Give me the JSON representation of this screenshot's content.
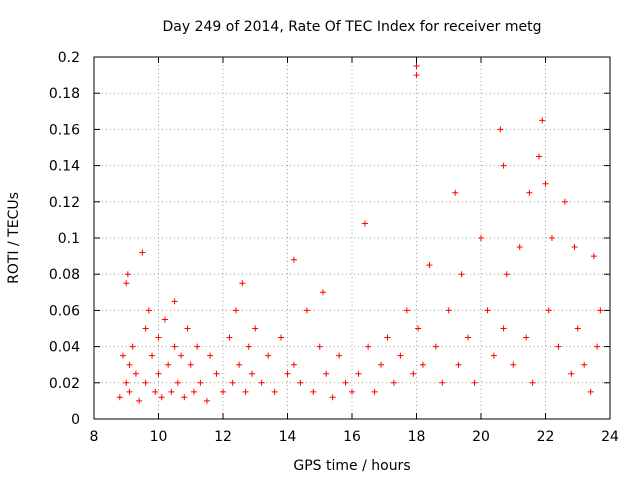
{
  "chart_data": {
    "type": "scatter",
    "title": "Day 249 of 2014, Rate Of TEC Index for receiver metg",
    "xlabel": "GPS time / hours",
    "ylabel": "ROTI / TECUs",
    "xlim": [
      8,
      24
    ],
    "ylim": [
      0,
      0.2
    ],
    "x_ticks": [
      "8",
      "10",
      "12",
      "14",
      "16",
      "18",
      "20",
      "22",
      "24"
    ],
    "y_ticks": [
      "0",
      "0.02",
      "0.04",
      "0.06",
      "0.08",
      "0.1",
      "0.12",
      "0.14",
      "0.16",
      "0.18",
      "0.2"
    ],
    "x_tick_values": [
      8,
      10,
      12,
      14,
      16,
      18,
      20,
      22,
      24
    ],
    "y_tick_values": [
      0,
      0.02,
      0.04,
      0.06,
      0.08,
      0.1,
      0.12,
      0.14,
      0.16,
      0.18,
      0.2
    ],
    "grid": true,
    "marker": "plus",
    "marker_color": "#ff0000",
    "series": [
      {
        "name": "ROTI",
        "x": [
          8.8,
          8.9,
          9.0,
          9.0,
          9.05,
          9.1,
          9.1,
          9.2,
          9.3,
          9.4,
          9.5,
          9.6,
          9.6,
          9.7,
          9.8,
          9.9,
          10.0,
          10.0,
          10.1,
          10.2,
          10.3,
          10.4,
          10.5,
          10.5,
          10.6,
          10.7,
          10.8,
          10.9,
          11.0,
          11.1,
          11.2,
          11.3,
          11.5,
          11.6,
          11.8,
          12.0,
          12.2,
          12.3,
          12.4,
          12.5,
          12.6,
          12.7,
          12.8,
          12.9,
          13.0,
          13.2,
          13.4,
          13.6,
          13.8,
          14.0,
          14.2,
          14.2,
          14.4,
          14.6,
          14.8,
          15.0,
          15.1,
          15.2,
          15.4,
          15.6,
          15.8,
          16.0,
          16.2,
          16.4,
          16.5,
          16.7,
          16.9,
          17.1,
          17.3,
          17.5,
          17.7,
          17.9,
          18.0,
          18.0,
          18.05,
          18.2,
          18.4,
          18.6,
          18.8,
          19.0,
          19.2,
          19.3,
          19.4,
          19.6,
          19.8,
          20.0,
          20.2,
          20.4,
          20.6,
          20.7,
          20.7,
          20.8,
          21.0,
          21.2,
          21.4,
          21.5,
          21.6,
          21.8,
          21.9,
          22.0,
          22.1,
          22.2,
          22.4,
          22.6,
          22.8,
          22.9,
          23.0,
          23.2,
          23.4,
          23.5,
          23.6,
          23.7
        ],
        "y": [
          0.012,
          0.035,
          0.02,
          0.075,
          0.08,
          0.03,
          0.015,
          0.04,
          0.025,
          0.01,
          0.092,
          0.05,
          0.02,
          0.06,
          0.035,
          0.015,
          0.045,
          0.025,
          0.012,
          0.055,
          0.03,
          0.015,
          0.065,
          0.04,
          0.02,
          0.035,
          0.012,
          0.05,
          0.03,
          0.015,
          0.04,
          0.02,
          0.01,
          0.035,
          0.025,
          0.015,
          0.045,
          0.02,
          0.06,
          0.03,
          0.075,
          0.015,
          0.04,
          0.025,
          0.05,
          0.02,
          0.035,
          0.015,
          0.045,
          0.025,
          0.088,
          0.03,
          0.02,
          0.06,
          0.015,
          0.04,
          0.07,
          0.025,
          0.012,
          0.035,
          0.02,
          0.015,
          0.025,
          0.108,
          0.04,
          0.015,
          0.03,
          0.045,
          0.02,
          0.035,
          0.06,
          0.025,
          0.19,
          0.195,
          0.05,
          0.03,
          0.085,
          0.04,
          0.02,
          0.06,
          0.125,
          0.03,
          0.08,
          0.045,
          0.02,
          0.1,
          0.06,
          0.035,
          0.16,
          0.14,
          0.05,
          0.08,
          0.03,
          0.095,
          0.045,
          0.125,
          0.02,
          0.145,
          0.165,
          0.13,
          0.06,
          0.1,
          0.04,
          0.12,
          0.025,
          0.095,
          0.05,
          0.03,
          0.015,
          0.09,
          0.04,
          0.06
        ]
      }
    ]
  }
}
